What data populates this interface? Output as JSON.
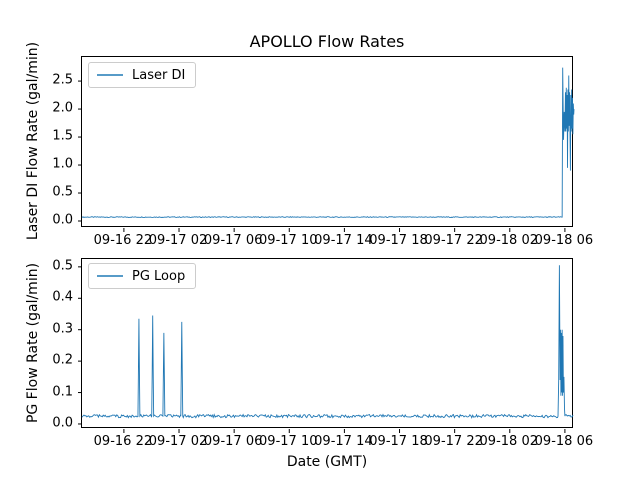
{
  "title": "APOLLO Flow Rates",
  "xlabel": "Date (GMT)",
  "colors": {
    "line": "#1f77b4",
    "legend_sample": "#579bc8",
    "axis": "#000000",
    "legend_border": "#cccccc",
    "background": "#ffffff"
  },
  "chart_data": [
    {
      "type": "line",
      "name": "laser-di",
      "title": "APOLLO Flow Rates",
      "ylabel": "Laser DI Flow Rate (gal/min)",
      "legend": "Laser DI",
      "legend_position": "upper left",
      "x_tick_labels": [
        "09-16 22",
        "09-17 02",
        "09-17 06",
        "09-17 10",
        "09-17 14",
        "09-17 18",
        "09-17 22",
        "09-18 02",
        "09-18 06"
      ],
      "x_tick_interval_hours": 4,
      "xlim_hours_from_first_tick": [
        -3.04,
        32.66
      ],
      "y_tick_labels": [
        "0.0",
        "0.5",
        "1.0",
        "1.5",
        "2.0",
        "2.5"
      ],
      "y_tick_values": [
        0.0,
        0.5,
        1.0,
        1.5,
        2.0,
        2.5
      ],
      "ylim": [
        -0.125,
        2.93
      ],
      "grid": false,
      "baseline": {
        "value": 0.07,
        "noise_amplitude": 0.007,
        "extends_to_hours": 31.8
      },
      "events": [
        {
          "label": "end-spike-cluster-09-18-06",
          "points": [
            [
              31.8,
              0.07
            ],
            [
              31.84,
              2.74
            ],
            [
              31.9,
              1.45
            ],
            [
              31.95,
              1.95
            ],
            [
              32.0,
              1.6
            ],
            [
              32.04,
              2.3
            ],
            [
              32.07,
              1.6
            ],
            [
              32.1,
              2.38
            ],
            [
              32.13,
              1.65
            ],
            [
              32.16,
              2.25
            ],
            [
              32.19,
              0.95
            ],
            [
              32.22,
              2.35
            ],
            [
              32.25,
              1.6
            ],
            [
              32.28,
              2.6
            ],
            [
              32.31,
              1.7
            ],
            [
              32.34,
              2.3
            ],
            [
              32.37,
              1.55
            ],
            [
              32.4,
              0.9
            ],
            [
              32.43,
              2.25
            ],
            [
              32.46,
              1.6
            ],
            [
              32.49,
              2.35
            ],
            [
              32.52,
              1.65
            ],
            [
              32.55,
              2.2
            ],
            [
              32.58,
              1.55
            ],
            [
              32.61,
              2.1
            ],
            [
              32.64,
              1.9
            ],
            [
              32.66,
              2.0
            ]
          ]
        }
      ]
    },
    {
      "type": "line",
      "name": "pg-loop",
      "ylabel": "PG Flow Rate (gal/min)",
      "xlabel": "Date (GMT)",
      "legend": "PG Loop",
      "legend_position": "upper left",
      "x_tick_labels": [
        "09-16 22",
        "09-17 02",
        "09-17 06",
        "09-17 10",
        "09-17 14",
        "09-17 18",
        "09-17 22",
        "09-18 02",
        "09-18 06"
      ],
      "x_tick_interval_hours": 4,
      "xlim_hours_from_first_tick": [
        -3.04,
        32.66
      ],
      "y_tick_labels": [
        "0.0",
        "0.1",
        "0.2",
        "0.3",
        "0.4",
        "0.5"
      ],
      "y_tick_values": [
        0.0,
        0.1,
        0.2,
        0.3,
        0.4,
        0.5
      ],
      "ylim": [
        -0.016,
        0.525
      ],
      "grid": false,
      "baseline": {
        "value": 0.025,
        "noise_amplitude": 0.005,
        "extends_to_hours": 32.66
      },
      "events": [
        {
          "label": "spike-09-16-23:05",
          "points": [
            [
              1.02,
              0.025
            ],
            [
              1.05,
              0.15
            ],
            [
              1.09,
              0.335
            ],
            [
              1.13,
              0.15
            ],
            [
              1.16,
              0.025
            ]
          ]
        },
        {
          "label": "spike-09-17-00:05",
          "points": [
            [
              2.02,
              0.025
            ],
            [
              2.05,
              0.15
            ],
            [
              2.09,
              0.345
            ],
            [
              2.13,
              0.15
            ],
            [
              2.16,
              0.025
            ]
          ]
        },
        {
          "label": "spike-09-17-00:55",
          "points": [
            [
              2.83,
              0.025
            ],
            [
              2.86,
              0.14
            ],
            [
              2.9,
              0.29
            ],
            [
              2.94,
              0.14
            ],
            [
              2.97,
              0.025
            ]
          ]
        },
        {
          "label": "spike-09-17-02:10",
          "points": [
            [
              4.13,
              0.025
            ],
            [
              4.16,
              0.15
            ],
            [
              4.2,
              0.325
            ],
            [
              4.24,
              0.15
            ],
            [
              4.27,
              0.025
            ]
          ]
        },
        {
          "label": "end-spike-cluster-09-18-05:45",
          "points": [
            [
              31.5,
              0.025
            ],
            [
              31.55,
              0.14
            ],
            [
              31.6,
              0.505
            ],
            [
              31.65,
              0.14
            ],
            [
              31.68,
              0.3
            ],
            [
              31.71,
              0.09
            ],
            [
              31.74,
              0.29
            ],
            [
              31.77,
              0.1
            ],
            [
              31.8,
              0.3
            ],
            [
              31.83,
              0.09
            ],
            [
              31.86,
              0.28
            ],
            [
              31.89,
              0.1
            ],
            [
              31.93,
              0.15
            ],
            [
              31.97,
              0.05
            ],
            [
              32.0,
              0.025
            ]
          ]
        }
      ]
    }
  ]
}
